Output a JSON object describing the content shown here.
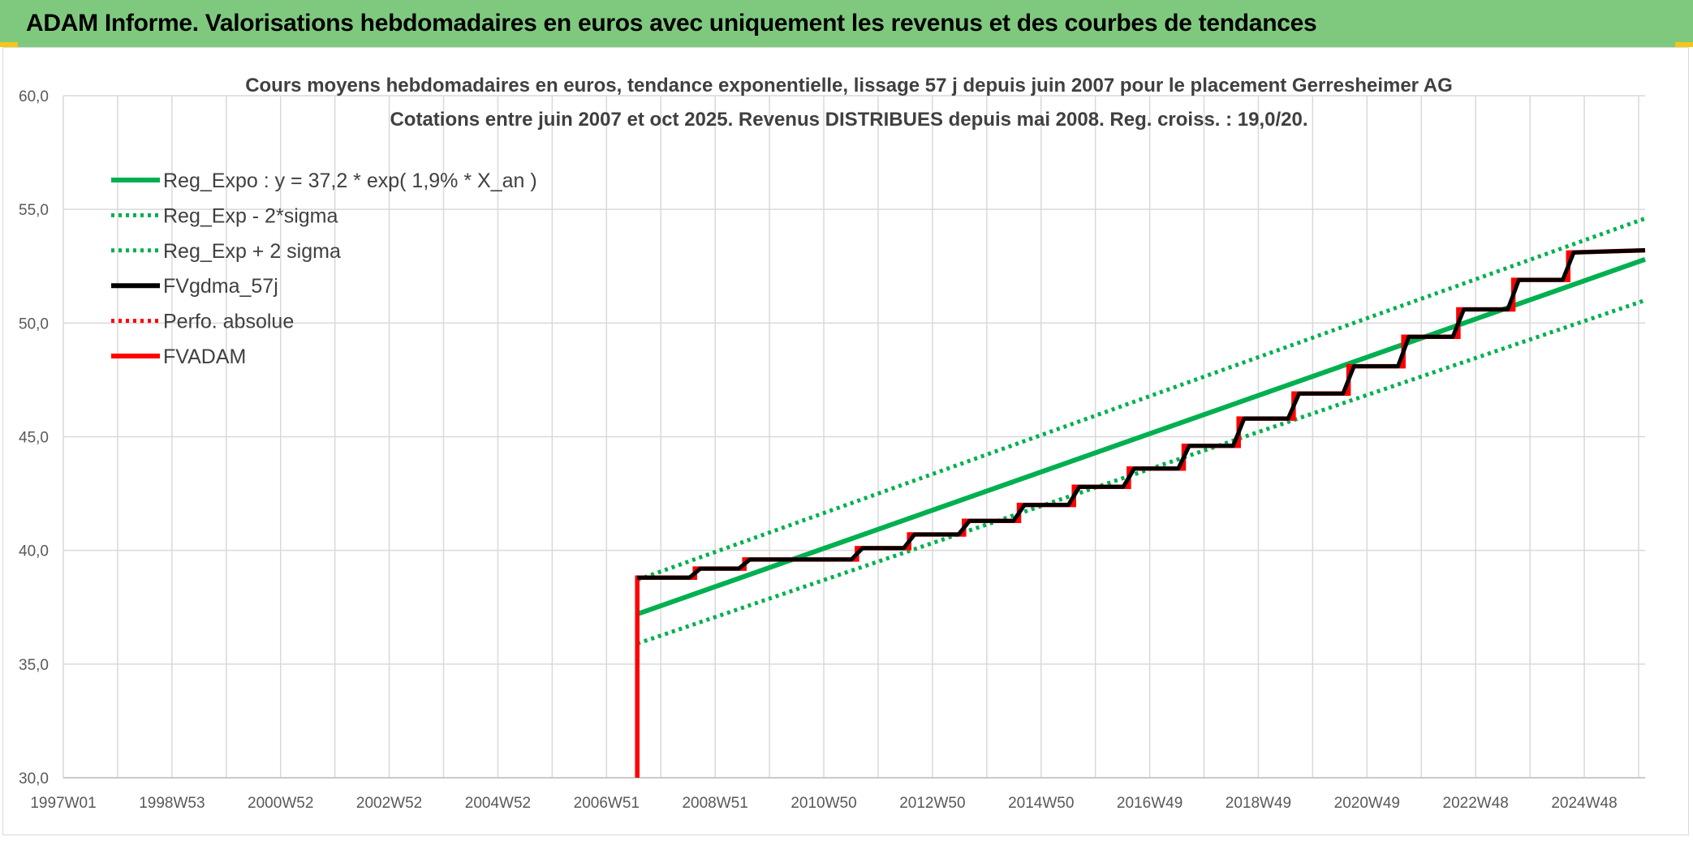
{
  "banner": {
    "title": "ADAM Informe. Valorisations hebdomadaires en euros avec uniquement les revenus et des courbes de tendances",
    "color": "#7fc97f"
  },
  "chart_data": {
    "type": "line",
    "title": "Cours moyens hebdomadaires en euros, tendance exponentielle, lissage 57 j depuis juin 2007 pour le placement Gerresheimer AG",
    "subtitle": "Cotations entre juin 2007 et oct 2025. Revenus DISTRIBUES depuis mai 2008. Reg. croiss. : 19,0/20.",
    "xlabel": "",
    "ylabel": "",
    "x_ticks": [
      "1997W01",
      "1998W53",
      "2000W52",
      "2002W52",
      "2004W52",
      "2006W51",
      "2008W51",
      "2010W50",
      "2012W50",
      "2014W50",
      "2016W49",
      "2018W49",
      "2020W49",
      "2022W48",
      "2024W48"
    ],
    "xlim": [
      1997.0,
      2025.8
    ],
    "ylim": [
      30,
      60
    ],
    "y_ticks": [
      "30,0",
      "35,0",
      "40,0",
      "45,0",
      "50,0",
      "55,0",
      "60,0"
    ],
    "grid": true,
    "legend_position": "top-left",
    "series": [
      {
        "name": "Reg_Expo : y = 37,2 * exp( 1,9% *  X_an )",
        "color": "#00b050",
        "style": "solid",
        "x": [
          2007.45,
          2025.8
        ],
        "y": [
          37.2,
          52.8
        ]
      },
      {
        "name": "Reg_Exp - 2*sigma",
        "color": "#00b050",
        "style": "dotted",
        "x": [
          2007.45,
          2025.8
        ],
        "y": [
          35.9,
          51.0
        ]
      },
      {
        "name": "Reg_Exp + 2 sigma",
        "color": "#00b050",
        "style": "dotted",
        "x": [
          2007.45,
          2025.8
        ],
        "y": [
          38.7,
          54.6
        ]
      },
      {
        "name": "FVgdma_57j",
        "color": "#000000",
        "style": "solid",
        "x": [
          2007.45,
          2008.4,
          2008.6,
          2009.3,
          2009.5,
          2011.35,
          2011.55,
          2012.3,
          2012.5,
          2013.3,
          2013.5,
          2014.3,
          2014.5,
          2015.3,
          2015.5,
          2016.3,
          2016.5,
          2017.3,
          2017.5,
          2018.3,
          2018.5,
          2019.3,
          2019.5,
          2020.3,
          2020.5,
          2021.3,
          2021.5,
          2022.3,
          2022.5,
          2023.3,
          2023.5,
          2024.3,
          2024.5,
          2025.8
        ],
        "y": [
          38.8,
          38.8,
          39.2,
          39.2,
          39.6,
          39.6,
          40.1,
          40.1,
          40.7,
          40.7,
          41.3,
          41.3,
          42.0,
          42.0,
          42.8,
          42.8,
          43.6,
          43.6,
          44.6,
          44.6,
          45.8,
          45.8,
          46.9,
          46.9,
          48.1,
          48.1,
          49.4,
          49.4,
          50.6,
          50.6,
          51.9,
          51.9,
          53.1,
          53.2
        ]
      },
      {
        "name": "Perfo. absolue",
        "color": "#ff0000",
        "style": "dotted",
        "x": [],
        "y": []
      },
      {
        "name": "FVADAM",
        "color": "#ff0000",
        "style": "solid",
        "x": [
          2007.45,
          2007.45,
          2008.5,
          2008.5,
          2009.4,
          2009.4,
          2011.45,
          2011.45,
          2012.4,
          2012.4,
          2013.4,
          2013.4,
          2014.4,
          2014.4,
          2015.4,
          2015.4,
          2016.4,
          2016.4,
          2017.4,
          2017.4,
          2018.4,
          2018.4,
          2019.4,
          2019.4,
          2020.4,
          2020.4,
          2021.4,
          2021.4,
          2022.4,
          2022.4,
          2023.4,
          2023.4,
          2024.4,
          2024.4,
          2025.8
        ],
        "y": [
          30.0,
          38.8,
          38.8,
          39.2,
          39.2,
          39.6,
          39.6,
          40.1,
          40.1,
          40.7,
          40.7,
          41.3,
          41.3,
          42.0,
          42.0,
          42.8,
          42.8,
          43.6,
          43.6,
          44.6,
          44.6,
          45.8,
          45.8,
          46.9,
          46.9,
          48.1,
          48.1,
          49.4,
          49.4,
          50.6,
          50.6,
          51.9,
          51.9,
          53.1,
          53.2
        ]
      }
    ]
  }
}
